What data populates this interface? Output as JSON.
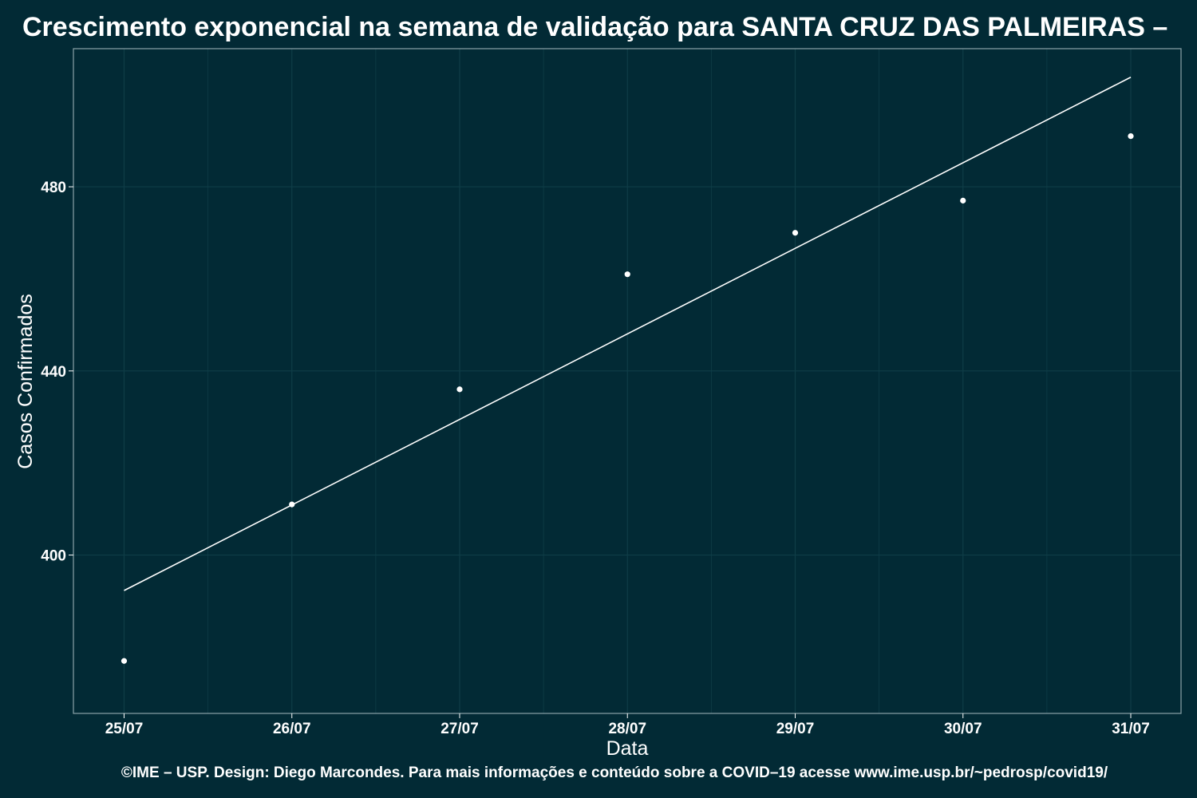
{
  "chart_data": {
    "type": "scatter",
    "title": "Crescimento exponencial na semana de validação para SANTA CRUZ DAS PALMEIRAS –",
    "xlabel": "Data",
    "ylabel": "Casos Confirmados",
    "categories": [
      "25/07",
      "26/07",
      "27/07",
      "28/07",
      "29/07",
      "30/07",
      "31/07"
    ],
    "series": [
      {
        "values": [
          377,
          411,
          436,
          461,
          470,
          477,
          491
        ]
      }
    ],
    "fit_line": {
      "start": 392.3,
      "end": 503.8
    },
    "y_ticks": [
      400,
      440,
      480
    ],
    "ylim": [
      365.6,
      510
    ],
    "grid": true,
    "legend": "none",
    "caption": "©IME – USP. Design: Diego Marcondes. Para mais informações e conteúdo sobre a COVID–19 acesse www.ime.usp.br/~pedrosp/covid19/",
    "colors": {
      "background": "#022a35",
      "foreground": "#ffffff",
      "grid": "#0f3d47",
      "panel_border": "#8aa3a8"
    }
  }
}
